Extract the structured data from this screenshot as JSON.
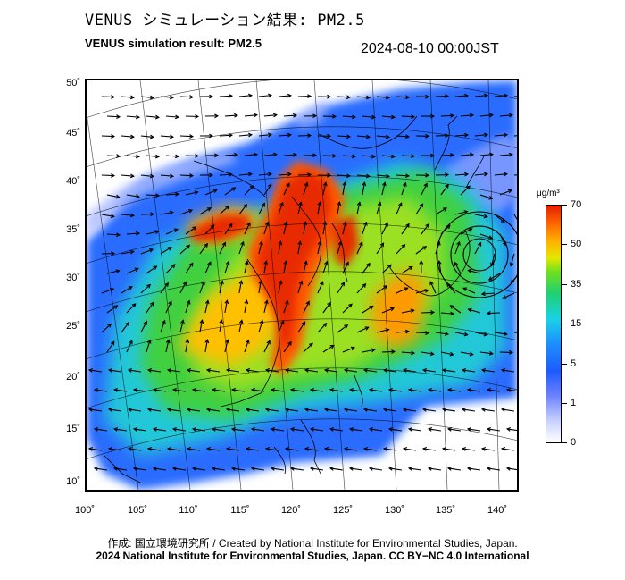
{
  "header": {
    "title_jp": "VENUS シミュレーション結果: PM2.5",
    "title_en": "VENUS simulation result: PM2.5",
    "timestamp": "2024-08-10 00:00JST"
  },
  "map": {
    "latitude_labels": [
      "50˚",
      "45˚",
      "40˚",
      "35˚",
      "30˚",
      "25˚",
      "20˚",
      "15˚",
      "10˚"
    ],
    "longitude_labels": [
      "100˚",
      "105˚",
      "110˚",
      "115˚",
      "120˚",
      "125˚",
      "130˚",
      "135˚",
      "140˚"
    ],
    "field": "PM2.5 concentration with wind vectors"
  },
  "colorbar": {
    "unit": "μg/m³",
    "ticks": [
      "70",
      "50",
      "35",
      "15",
      "5",
      "1",
      "0"
    ],
    "colors": [
      "#e61e00",
      "#ff6a00",
      "#ffb000",
      "#e6e600",
      "#70e020",
      "#20d070",
      "#19d2e6",
      "#1e90ff",
      "#1e5aff",
      "#6a80ff",
      "#c8d2ff",
      "#ffffff"
    ]
  },
  "footer": {
    "credit_line1": "作成: 国立環境研究所 / Created by National Institute for Environmental Studies, Japan.",
    "credit_line2": "2024 National Institute for Environmental Studies, Japan. CC BY−NC 4.0 International"
  }
}
